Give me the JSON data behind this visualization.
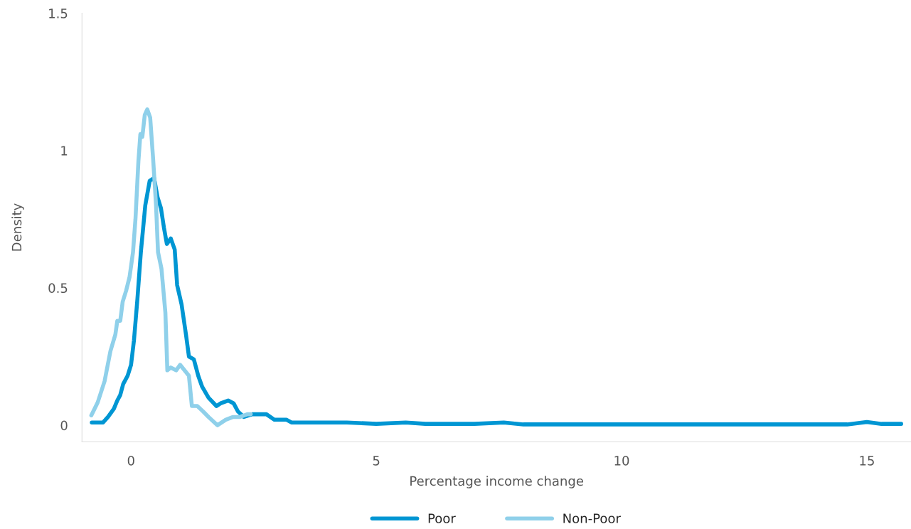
{
  "chart_data": {
    "type": "line",
    "xlabel": "Percentage income change",
    "ylabel": "Density",
    "xlim": [
      -1,
      15.9
    ],
    "ylim": [
      -0.06,
      1.5
    ],
    "xticks": [
      0,
      5,
      10,
      15
    ],
    "yticks": [
      0,
      0.5,
      1,
      1.5
    ],
    "grid": false,
    "legend": "bottom",
    "marker": "none",
    "line_style": "solid",
    "series": [
      {
        "name": "Poor",
        "color": "#0096d3",
        "x": [
          -0.8,
          -0.57,
          -0.47,
          -0.35,
          -0.28,
          -0.22,
          -0.16,
          -0.07,
          0,
          0.06,
          0.13,
          0.2,
          0.29,
          0.38,
          0.47,
          0.54,
          0.61,
          0.67,
          0.73,
          0.81,
          0.89,
          0.94,
          1.03,
          1.12,
          1.18,
          1.28,
          1.37,
          1.45,
          1.58,
          1.74,
          1.83,
          1.98,
          2.09,
          2.18,
          2.3,
          2.47,
          2.62,
          2.76,
          2.92,
          3.17,
          3.27,
          3.68,
          3.82,
          4.4,
          5,
          5.6,
          6,
          7,
          7.6,
          8,
          10,
          14.6,
          15,
          15.3,
          15.7
        ],
        "values": [
          0.01,
          0.01,
          0.03,
          0.06,
          0.09,
          0.11,
          0.15,
          0.18,
          0.22,
          0.31,
          0.46,
          0.63,
          0.8,
          0.89,
          0.9,
          0.83,
          0.79,
          0.72,
          0.66,
          0.68,
          0.64,
          0.51,
          0.44,
          0.33,
          0.25,
          0.24,
          0.18,
          0.14,
          0.1,
          0.07,
          0.08,
          0.09,
          0.08,
          0.05,
          0.03,
          0.04,
          0.04,
          0.04,
          0.02,
          0.02,
          0.01,
          0.01,
          0.01,
          0.01,
          0.005,
          0.01,
          0.005,
          0.005,
          0.01,
          0.003,
          0.003,
          0.003,
          0.012,
          0.005,
          0.005
        ]
      },
      {
        "name": "Non-Poor",
        "color": "#8fd0ea",
        "x": [
          -0.81,
          -0.68,
          -0.54,
          -0.42,
          -0.32,
          -0.28,
          -0.22,
          -0.17,
          -0.1,
          -0.03,
          0.04,
          0.09,
          0.15,
          0.19,
          0.23,
          0.28,
          0.33,
          0.39,
          0.45,
          0.51,
          0.55,
          0.62,
          0.7,
          0.74,
          0.81,
          0.92,
          1.0,
          1.09,
          1.18,
          1.24,
          1.35,
          1.47,
          1.58,
          1.76,
          1.93,
          2.08,
          2.22,
          2.37,
          2.44
        ],
        "values": [
          0.036,
          0.083,
          0.16,
          0.27,
          0.33,
          0.38,
          0.38,
          0.45,
          0.49,
          0.54,
          0.63,
          0.75,
          0.96,
          1.06,
          1.05,
          1.13,
          1.15,
          1.12,
          0.97,
          0.8,
          0.63,
          0.57,
          0.41,
          0.2,
          0.21,
          0.2,
          0.22,
          0.2,
          0.18,
          0.07,
          0.07,
          0.05,
          0.03,
          0.0,
          0.02,
          0.03,
          0.03,
          0.04,
          0.04
        ]
      }
    ]
  }
}
